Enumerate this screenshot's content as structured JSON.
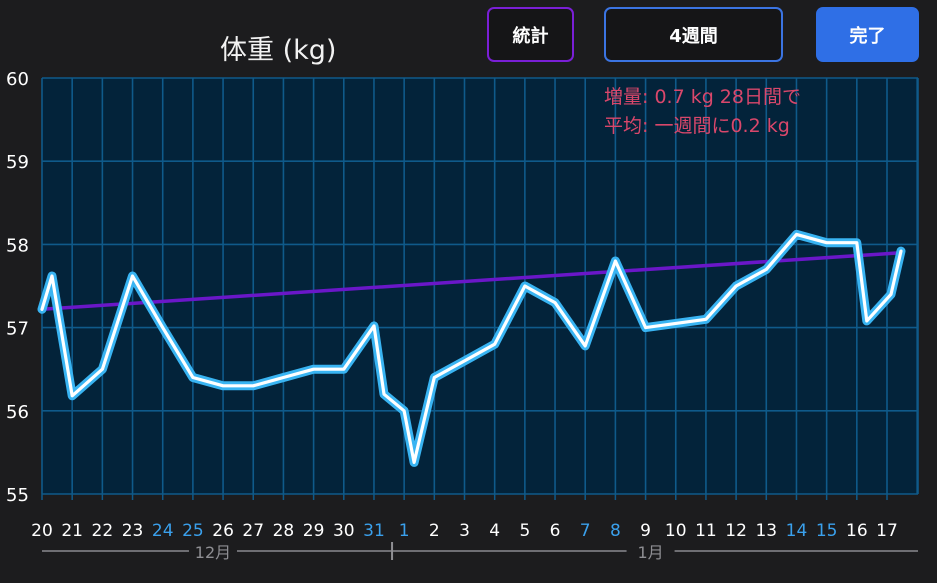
{
  "header": {
    "title": "体重 (kg)",
    "stats_button": "統計",
    "range_button": "4週間",
    "done_button": "完了"
  },
  "stats": {
    "gain_line": "増量: 0.7 kg 28日間で",
    "avg_line": "平均: 一週間に0.2 kg"
  },
  "colors": {
    "background": "#1c1c1e",
    "plot_background": "#03233a",
    "grid": "#0f5a8a",
    "line": "#39b4f2",
    "trend": "#6a17c8",
    "weekend_label": "#3aa0ec",
    "stats_text": "#d9476b"
  },
  "chart_data": {
    "type": "line",
    "title": "体重 (kg)",
    "ylim": [
      55,
      60
    ],
    "yticks": [
      "55",
      "56",
      "57",
      "58",
      "59",
      "60"
    ],
    "x_labels": [
      {
        "label": "20",
        "weekend": false
      },
      {
        "label": "21",
        "weekend": false
      },
      {
        "label": "22",
        "weekend": false
      },
      {
        "label": "23",
        "weekend": false
      },
      {
        "label": "24",
        "weekend": true
      },
      {
        "label": "25",
        "weekend": true
      },
      {
        "label": "26",
        "weekend": false
      },
      {
        "label": "27",
        "weekend": false
      },
      {
        "label": "28",
        "weekend": false
      },
      {
        "label": "29",
        "weekend": false
      },
      {
        "label": "30",
        "weekend": false
      },
      {
        "label": "31",
        "weekend": true
      },
      {
        "label": "1",
        "weekend": true
      },
      {
        "label": "2",
        "weekend": false
      },
      {
        "label": "3",
        "weekend": false
      },
      {
        "label": "4",
        "weekend": false
      },
      {
        "label": "5",
        "weekend": false
      },
      {
        "label": "6",
        "weekend": false
      },
      {
        "label": "7",
        "weekend": true
      },
      {
        "label": "8",
        "weekend": true
      },
      {
        "label": "9",
        "weekend": false
      },
      {
        "label": "10",
        "weekend": false
      },
      {
        "label": "11",
        "weekend": false
      },
      {
        "label": "12",
        "weekend": false
      },
      {
        "label": "13",
        "weekend": false
      },
      {
        "label": "14",
        "weekend": true
      },
      {
        "label": "15",
        "weekend": true
      },
      {
        "label": "16",
        "weekend": false
      },
      {
        "label": "17",
        "weekend": false
      }
    ],
    "months": [
      {
        "label": "12月",
        "from": "20",
        "to": "31"
      },
      {
        "label": "1月",
        "from": "1",
        "to": "17"
      }
    ],
    "series": [
      {
        "points": [
          [
            "20",
            57.22
          ],
          [
            "20",
            57.62
          ],
          [
            "21",
            56.18
          ],
          [
            "22",
            56.5
          ],
          [
            "23",
            57.62
          ],
          [
            "24",
            57.0
          ],
          [
            "25",
            56.4
          ],
          [
            "26",
            56.3
          ],
          [
            "27",
            56.3
          ],
          [
            "28",
            56.4
          ],
          [
            "29",
            56.5
          ],
          [
            "30",
            56.5
          ],
          [
            "31",
            57.02
          ],
          [
            "31",
            56.2
          ],
          [
            "1",
            56.0
          ],
          [
            "1",
            55.38
          ],
          [
            "2",
            56.4
          ],
          [
            "3",
            56.6
          ],
          [
            "4",
            56.8
          ],
          [
            "5",
            57.5
          ],
          [
            "6",
            57.3
          ],
          [
            "7",
            56.78
          ],
          [
            "8",
            57.8
          ],
          [
            "9",
            57.0
          ],
          [
            "10",
            57.05
          ],
          [
            "11",
            57.1
          ],
          [
            "12",
            57.5
          ],
          [
            "13",
            57.7
          ],
          [
            "14",
            58.12
          ],
          [
            "15",
            58.02
          ],
          [
            "16",
            58.02
          ],
          [
            "16",
            57.08
          ],
          [
            "17",
            57.4
          ],
          [
            "17",
            57.92
          ]
        ]
      },
      {
        "style": "trend",
        "points": [
          [
            "20",
            57.22
          ],
          [
            "17",
            57.9
          ]
        ]
      }
    ]
  }
}
